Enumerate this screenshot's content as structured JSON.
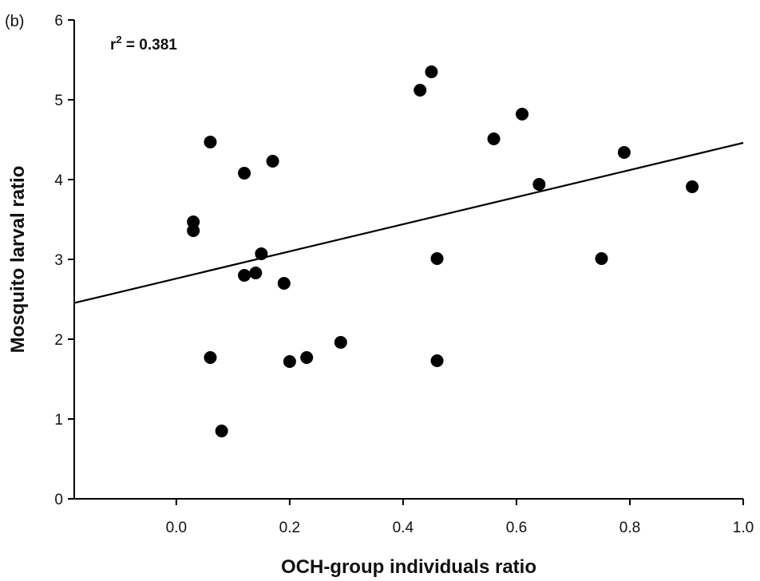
{
  "chart_data": {
    "type": "scatter",
    "panel_label": "(b)",
    "annotation": {
      "base": "r",
      "sup": "2",
      "rest": " = 0.381"
    },
    "xlabel": "OCH-group individuals ratio",
    "ylabel": "Mosquito larval ratio",
    "xlim": [
      -0.18,
      1.0
    ],
    "ylim": [
      0,
      6
    ],
    "xticks": [
      0.0,
      0.2,
      0.4,
      0.6,
      0.8,
      1.0
    ],
    "xtick_labels": [
      "0.0",
      "0.2",
      "0.4",
      "0.6",
      "0.8",
      "1.0"
    ],
    "yticks": [
      0,
      1,
      2,
      3,
      4,
      5,
      6
    ],
    "ytick_labels": [
      "0",
      "1",
      "2",
      "3",
      "4",
      "5",
      "6"
    ],
    "grid": false,
    "points": [
      {
        "x": 0.03,
        "y": 3.47
      },
      {
        "x": 0.03,
        "y": 3.36
      },
      {
        "x": 0.06,
        "y": 4.47
      },
      {
        "x": 0.06,
        "y": 1.77
      },
      {
        "x": 0.08,
        "y": 0.85
      },
      {
        "x": 0.12,
        "y": 4.08
      },
      {
        "x": 0.12,
        "y": 2.8
      },
      {
        "x": 0.14,
        "y": 2.83
      },
      {
        "x": 0.15,
        "y": 3.07
      },
      {
        "x": 0.17,
        "y": 4.23
      },
      {
        "x": 0.19,
        "y": 2.7
      },
      {
        "x": 0.2,
        "y": 1.72
      },
      {
        "x": 0.23,
        "y": 1.77
      },
      {
        "x": 0.29,
        "y": 1.96
      },
      {
        "x": 0.43,
        "y": 5.12
      },
      {
        "x": 0.45,
        "y": 5.35
      },
      {
        "x": 0.46,
        "y": 3.01
      },
      {
        "x": 0.46,
        "y": 1.73
      },
      {
        "x": 0.56,
        "y": 4.51
      },
      {
        "x": 0.61,
        "y": 4.82
      },
      {
        "x": 0.64,
        "y": 3.94
      },
      {
        "x": 0.75,
        "y": 3.01
      },
      {
        "x": 0.79,
        "y": 4.34
      },
      {
        "x": 0.91,
        "y": 3.91
      }
    ],
    "trendline": {
      "intercept": 2.76,
      "slope": 1.7
    },
    "colors": {
      "marker": "#000000",
      "line": "#000000",
      "axis": "#000000"
    }
  }
}
